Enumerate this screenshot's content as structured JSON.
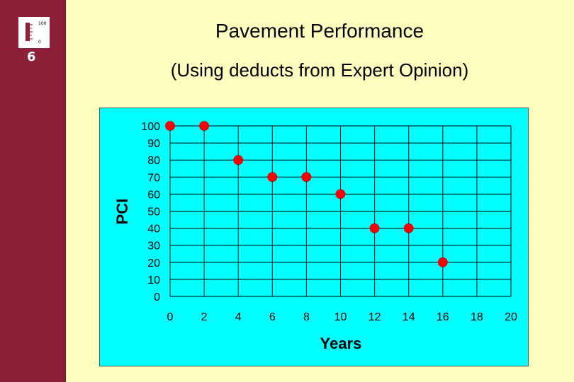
{
  "slide": {
    "number": "6",
    "title": "Pavement Performance",
    "subtitle": "(Using deducts from Expert Opinion)",
    "logo": {
      "top_label": "100",
      "bottom_label": "0"
    }
  },
  "colors": {
    "background": "#ffffc0",
    "sidebar": "#8b2038",
    "plot_area": "#00ffff",
    "marker": "#ff0000"
  },
  "chart_data": {
    "type": "scatter",
    "title": "",
    "xlabel": "Years",
    "ylabel": "PCI",
    "xlim": [
      0,
      20
    ],
    "ylim": [
      0,
      100
    ],
    "x_ticks": [
      0,
      2,
      4,
      6,
      8,
      10,
      12,
      14,
      16,
      18,
      20
    ],
    "y_ticks": [
      0,
      10,
      20,
      30,
      40,
      50,
      60,
      70,
      80,
      90,
      100
    ],
    "grid": true,
    "legend": "none",
    "series": [
      {
        "x": [
          0,
          2,
          4,
          6,
          8,
          10,
          12,
          14,
          16
        ],
        "y": [
          100,
          100,
          80,
          70,
          70,
          60,
          40,
          40,
          20
        ]
      }
    ]
  }
}
